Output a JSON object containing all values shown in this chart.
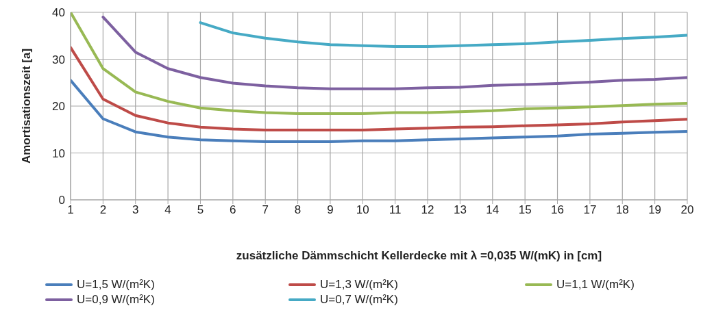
{
  "chart_data": {
    "type": "line",
    "xlabel": "zusätzliche Dämmschicht Kellerdecke mit λ =0,035 W/(mK) in [cm]",
    "ylabel": "Amortisationszeit  [a]",
    "x": [
      1,
      2,
      3,
      4,
      5,
      6,
      7,
      8,
      9,
      10,
      11,
      12,
      13,
      14,
      15,
      16,
      17,
      18,
      19,
      20
    ],
    "xlim": [
      1,
      20
    ],
    "xticks": [
      1,
      2,
      3,
      4,
      5,
      6,
      7,
      8,
      9,
      10,
      11,
      12,
      13,
      14,
      15,
      16,
      17,
      18,
      19,
      20
    ],
    "ylim": [
      0,
      40
    ],
    "yticks": [
      0,
      10,
      20,
      30,
      40
    ],
    "grid": true,
    "legend": "bottom",
    "marker": "none",
    "line_style": "solid",
    "series": [
      {
        "name": "U=1,5 W/(m²K)",
        "color": "#4a7ebb",
        "values": [
          25.5,
          17.3,
          14.5,
          13.4,
          12.8,
          12.6,
          12.4,
          12.4,
          12.4,
          12.6,
          12.6,
          12.8,
          13.0,
          13.2,
          13.4,
          13.6,
          14.0,
          14.2,
          14.4,
          14.6
        ]
      },
      {
        "name": "U=1,3 W/(m²K)",
        "color": "#be4b48",
        "values": [
          32.5,
          21.5,
          18.0,
          16.4,
          15.5,
          15.1,
          14.9,
          14.9,
          14.9,
          14.9,
          15.1,
          15.3,
          15.5,
          15.6,
          15.8,
          16.0,
          16.2,
          16.6,
          16.9,
          17.2
        ]
      },
      {
        "name": "U=1,1 W/(m²K)",
        "color": "#98b954",
        "values": [
          40,
          28,
          23,
          21,
          19.6,
          19,
          18.6,
          18.4,
          18.4,
          18.4,
          18.6,
          18.6,
          18.8,
          19.0,
          19.4,
          19.6,
          19.8,
          20.1,
          20.4,
          20.6
        ]
      },
      {
        "name": "U=0,9 W/(m²K)",
        "color": "#7d60a0",
        "values": [
          null,
          39,
          31.5,
          28,
          26.1,
          24.9,
          24.3,
          23.9,
          23.7,
          23.7,
          23.7,
          23.9,
          24.0,
          24.4,
          24.6,
          24.8,
          25.1,
          25.5,
          25.7,
          26.1
        ]
      },
      {
        "name": "U=0,7 W/(m²K)",
        "color": "#46aac5",
        "values": [
          null,
          null,
          null,
          null,
          37.8,
          35.6,
          34.5,
          33.7,
          33.1,
          32.9,
          32.7,
          32.7,
          32.9,
          33.1,
          33.3,
          33.7,
          34.0,
          34.4,
          34.7,
          35.1
        ]
      }
    ]
  }
}
